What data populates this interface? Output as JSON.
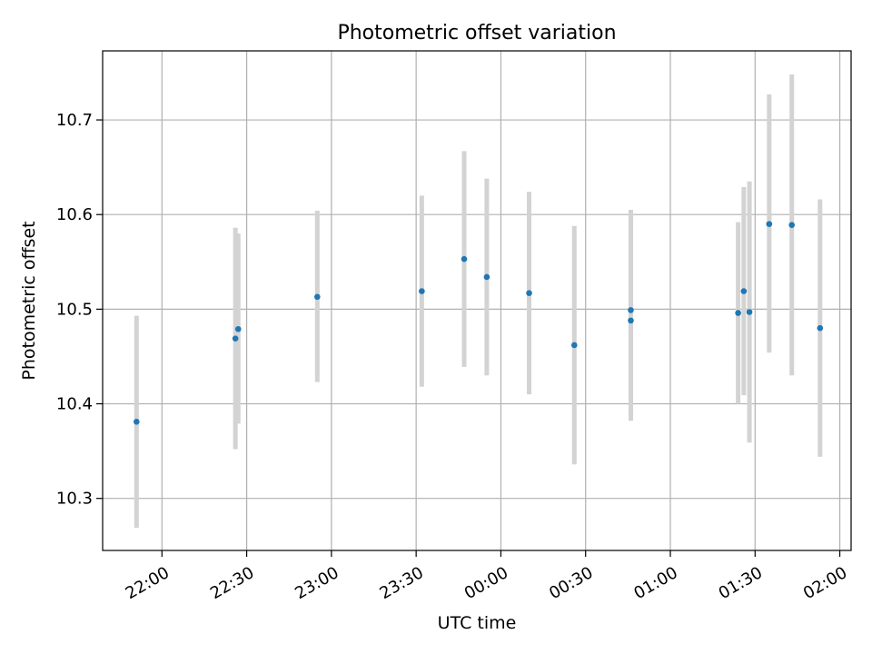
{
  "chart_data": {
    "type": "scatter",
    "title": "Photometric offset variation",
    "xlabel": "UTC time",
    "ylabel": "Photometric offset",
    "x_tick_labels": [
      "22:00",
      "22:30",
      "23:00",
      "23:30",
      "00:00",
      "00:30",
      "01:00",
      "01:30",
      "02:00"
    ],
    "y_ticks": [
      10.3,
      10.4,
      10.5,
      10.6,
      10.7
    ],
    "y_tick_labels": [
      "10.3",
      "10.4",
      "10.5",
      "10.6",
      "10.7"
    ],
    "xlim": [
      "21:39",
      "02:04"
    ],
    "ylim": [
      10.245,
      10.773
    ],
    "grid": true,
    "colors": {
      "point": "#1f77b4",
      "errorbar": "#d3d3d3",
      "grid": "#b0b0b0"
    },
    "points": [
      {
        "x": "21:51",
        "y": 10.381,
        "err_low": 10.269,
        "err_high": 10.493
      },
      {
        "x": "22:26",
        "y": 10.469,
        "err_low": 10.352,
        "err_high": 10.586
      },
      {
        "x": "22:27",
        "y": 10.479,
        "err_low": 10.379,
        "err_high": 10.58
      },
      {
        "x": "22:55",
        "y": 10.513,
        "err_low": 10.423,
        "err_high": 10.604
      },
      {
        "x": "23:32",
        "y": 10.519,
        "err_low": 10.418,
        "err_high": 10.62
      },
      {
        "x": "23:47",
        "y": 10.553,
        "err_low": 10.439,
        "err_high": 10.667
      },
      {
        "x": "23:55",
        "y": 10.534,
        "err_low": 10.43,
        "err_high": 10.638
      },
      {
        "x": "00:10",
        "y": 10.517,
        "err_low": 10.41,
        "err_high": 10.624
      },
      {
        "x": "00:26",
        "y": 10.462,
        "err_low": 10.336,
        "err_high": 10.588
      },
      {
        "x": "00:46",
        "y": 10.499,
        "err_low": 10.392,
        "err_high": 10.605
      },
      {
        "x": "00:46",
        "y": 10.488,
        "err_low": 10.382,
        "err_high": 10.595
      },
      {
        "x": "01:24",
        "y": 10.496,
        "err_low": 10.4,
        "err_high": 10.592
      },
      {
        "x": "01:26",
        "y": 10.519,
        "err_low": 10.409,
        "err_high": 10.629
      },
      {
        "x": "01:28",
        "y": 10.497,
        "err_low": 10.359,
        "err_high": 10.635
      },
      {
        "x": "01:35",
        "y": 10.59,
        "err_low": 10.454,
        "err_high": 10.727
      },
      {
        "x": "01:43",
        "y": 10.589,
        "err_low": 10.43,
        "err_high": 10.748
      },
      {
        "x": "01:53",
        "y": 10.48,
        "err_low": 10.344,
        "err_high": 10.616
      }
    ]
  }
}
